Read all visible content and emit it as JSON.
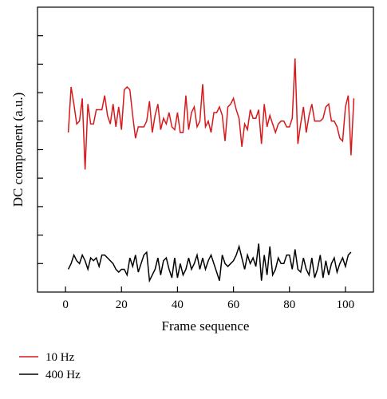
{
  "chart_data": {
    "type": "line",
    "xlabel": "Frame sequence",
    "ylabel": "DC component (a.u.)",
    "xlim": [
      -10,
      110
    ],
    "ylim": [
      0,
      10
    ],
    "x_ticks": [
      0,
      20,
      40,
      60,
      80,
      100
    ],
    "x_tick_labels": [
      "0",
      "20",
      "40",
      "60",
      "80",
      "100"
    ],
    "y_ticks": [
      1,
      2,
      3,
      4,
      5,
      6,
      7,
      8,
      9
    ],
    "y_tick_labels": [],
    "grid": false,
    "legend_position": "bottom-left, below plot",
    "series": [
      {
        "name": "10 Hz",
        "color": "#d7191c",
        "x_start": 1,
        "values": [
          5.6,
          7.2,
          6.6,
          5.9,
          6.0,
          6.8,
          4.3,
          6.6,
          5.9,
          5.9,
          6.4,
          6.4,
          6.4,
          6.9,
          6.2,
          5.9,
          6.6,
          5.8,
          6.5,
          5.7,
          7.1,
          7.2,
          7.1,
          6.2,
          5.4,
          5.8,
          5.8,
          5.8,
          6.0,
          6.7,
          5.6,
          6.2,
          6.6,
          5.7,
          6.1,
          5.9,
          6.3,
          5.8,
          5.7,
          6.3,
          5.6,
          5.6,
          6.9,
          5.7,
          6.3,
          6.5,
          5.8,
          6.0,
          7.3,
          5.8,
          6.0,
          5.6,
          6.3,
          6.3,
          6.5,
          6.2,
          5.3,
          6.5,
          6.6,
          6.8,
          6.4,
          6.1,
          5.1,
          5.9,
          5.7,
          6.4,
          6.1,
          6.1,
          6.4,
          5.2,
          6.6,
          5.8,
          6.2,
          5.9,
          5.6,
          5.9,
          6.0,
          6.0,
          5.8,
          5.8,
          6.1,
          8.2,
          5.2,
          5.9,
          6.5,
          5.6,
          6.2,
          6.6,
          6.0,
          6.0,
          6.0,
          6.1,
          6.5,
          6.6,
          6.0,
          6.0,
          5.8,
          5.4,
          5.3,
          6.5,
          6.9,
          4.8,
          6.8
        ]
      },
      {
        "name": "400 Hz",
        "color": "#000000",
        "x_start": 1,
        "values": [
          0.8,
          1.0,
          1.3,
          1.1,
          1.0,
          1.3,
          1.1,
          0.8,
          1.2,
          1.1,
          1.2,
          0.9,
          1.3,
          1.3,
          1.2,
          1.1,
          1.0,
          0.8,
          0.7,
          0.8,
          0.8,
          0.6,
          1.2,
          0.9,
          1.3,
          0.7,
          1.0,
          1.3,
          1.4,
          0.4,
          0.6,
          0.8,
          1.2,
          0.6,
          1.1,
          1.2,
          0.8,
          0.5,
          1.2,
          0.5,
          1.0,
          0.6,
          0.8,
          1.2,
          0.8,
          1.0,
          1.3,
          0.8,
          1.2,
          0.8,
          1.1,
          1.3,
          1.0,
          0.7,
          0.4,
          1.3,
          1.0,
          0.9,
          1.0,
          1.1,
          1.3,
          1.6,
          1.2,
          0.8,
          1.3,
          1.0,
          1.2,
          0.9,
          1.7,
          0.4,
          1.3,
          0.6,
          1.6,
          0.6,
          0.8,
          1.2,
          1.0,
          1.0,
          1.3,
          1.3,
          0.8,
          1.5,
          0.8,
          0.7,
          1.2,
          0.8,
          0.6,
          1.2,
          0.5,
          0.8,
          1.3,
          0.5,
          1.1,
          0.6,
          1.0,
          1.2,
          0.7,
          1.0,
          1.2,
          0.9,
          1.3,
          1.4
        ]
      }
    ]
  }
}
